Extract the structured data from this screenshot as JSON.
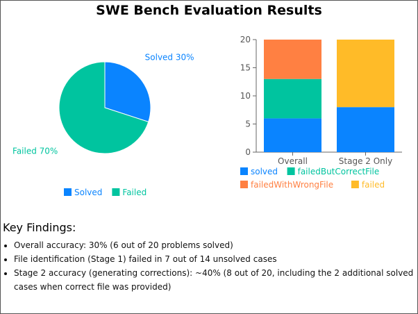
{
  "title": "SWE Bench Evaluation Results",
  "chart_data": [
    {
      "type": "pie",
      "slices": [
        {
          "name": "Solved",
          "value": 30,
          "label": "Solved 30%",
          "color": "#0a84ff"
        },
        {
          "name": "Failed",
          "value": 70,
          "label": "Failed 70%",
          "color": "#00c49f"
        }
      ],
      "legend": [
        {
          "name": "Solved",
          "color": "#0a84ff"
        },
        {
          "name": "Failed",
          "color": "#00c49f"
        }
      ],
      "legend_position": "bottom"
    },
    {
      "type": "bar",
      "stacked": true,
      "categories": [
        "Overall",
        "Stage 2 Only"
      ],
      "series": [
        {
          "name": "solved",
          "color": "#0a84ff",
          "values": [
            6,
            8
          ]
        },
        {
          "name": "failedButCorrectFile",
          "color": "#00c49f",
          "values": [
            7,
            0
          ]
        },
        {
          "name": "failedWithWrongFile",
          "color": "#ff8042",
          "values": [
            7,
            0
          ]
        },
        {
          "name": "failed",
          "color": "#ffbb28",
          "values": [
            0,
            12
          ]
        }
      ],
      "ylim": [
        0,
        20
      ],
      "yticks": [
        "0",
        "5",
        "10",
        "15",
        "20"
      ],
      "legend_position": "bottom"
    }
  ],
  "findings": {
    "heading": "Key Findings:",
    "items": [
      "Overall accuracy: 30% (6 out of 20 problems solved)",
      "File identification (Stage 1) failed in 7 out of 14 unsolved cases",
      "Stage 2 accuracy (generating corrections): ~40% (8 out of 20, including the 2 additional solved cases when correct file was provided)"
    ]
  }
}
